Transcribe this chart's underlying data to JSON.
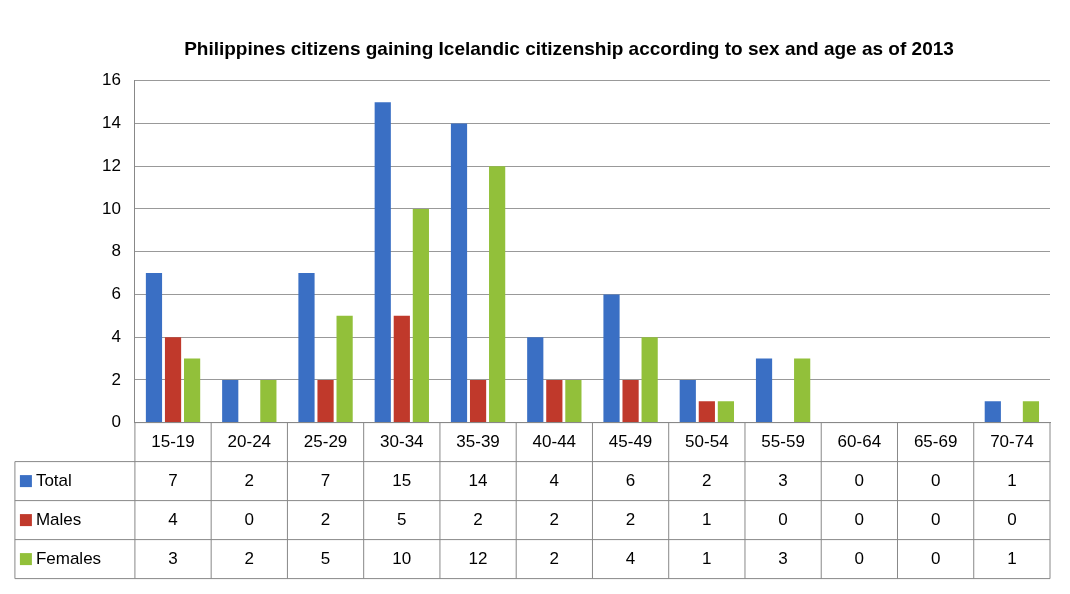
{
  "chart_data": {
    "type": "bar",
    "title": "Philippines citizens gaining Icelandic citizenship according to sex and age as of 2013",
    "categories": [
      "15-19",
      "20-24",
      "25-29",
      "30-34",
      "35-39",
      "40-44",
      "45-49",
      "50-54",
      "55-59",
      "60-64",
      "65-69",
      "70-74"
    ],
    "series": [
      {
        "name": "Total",
        "color": "#3a6fc4",
        "values": [
          7,
          2,
          7,
          15,
          14,
          4,
          6,
          2,
          3,
          0,
          0,
          1
        ]
      },
      {
        "name": "Males",
        "color": "#c0392b",
        "values": [
          4,
          0,
          2,
          5,
          2,
          2,
          2,
          1,
          0,
          0,
          0,
          0
        ]
      },
      {
        "name": "Females",
        "color": "#92c03a",
        "values": [
          3,
          2,
          5,
          10,
          12,
          2,
          4,
          1,
          3,
          0,
          0,
          1
        ]
      }
    ],
    "ylim": [
      0,
      16
    ],
    "yticks": [
      0,
      2,
      4,
      6,
      8,
      10,
      12,
      14,
      16
    ],
    "grid": "y",
    "legend": "bottom",
    "data_labels": true
  }
}
